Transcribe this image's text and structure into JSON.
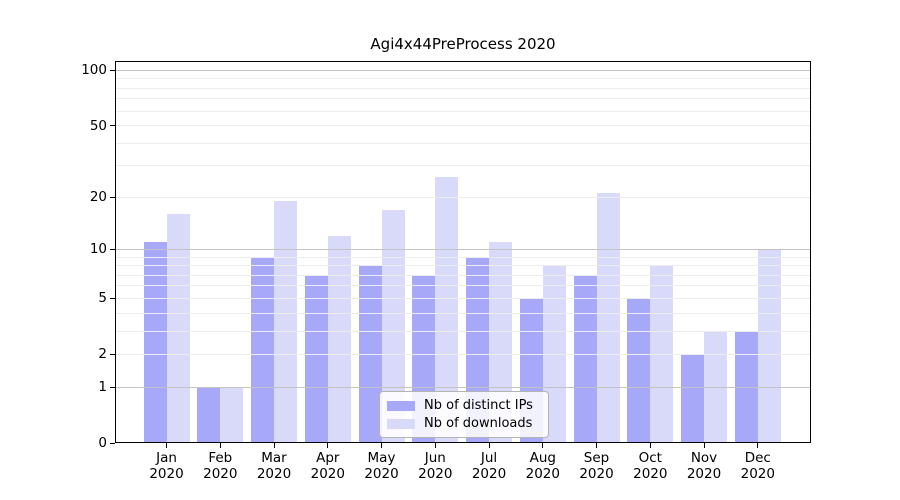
{
  "chart_data": {
    "type": "bar",
    "title": "Agi4x44PreProcess 2020",
    "months": [
      "Jan",
      "Feb",
      "Mar",
      "Apr",
      "May",
      "Jun",
      "Jul",
      "Aug",
      "Sep",
      "Oct",
      "Nov",
      "Dec"
    ],
    "year": "2020",
    "categories": [
      "Jan 2020",
      "Feb 2020",
      "Mar 2020",
      "Apr 2020",
      "May 2020",
      "Jun 2020",
      "Jul 2020",
      "Aug 2020",
      "Sep 2020",
      "Oct 2020",
      "Nov 2020",
      "Dec 2020"
    ],
    "series": [
      {
        "name": "Nb of distinct IPs",
        "color": "#a8a8f8",
        "values": [
          11,
          1,
          9,
          7,
          8,
          7,
          9,
          5,
          7,
          5,
          2,
          3
        ]
      },
      {
        "name": "Nb of downloads",
        "color": "#d9d9fa",
        "values": [
          16,
          1,
          19,
          12,
          17,
          26,
          11,
          8,
          21,
          8,
          3,
          10
        ]
      }
    ],
    "yscale": "log1p",
    "ylim": [
      0,
      112
    ],
    "yticks": [
      0,
      1,
      2,
      5,
      10,
      20,
      50,
      100
    ],
    "major_gridlines": [
      1,
      10,
      100
    ],
    "minor_gridlines": [
      2,
      3,
      4,
      5,
      6,
      7,
      8,
      9,
      20,
      30,
      40,
      50,
      60,
      70,
      80,
      90
    ],
    "grid": true,
    "legend_position": "lower center",
    "xlabel": "",
    "ylabel": ""
  },
  "colors": {
    "background": "#ffffff",
    "frame": "#000000",
    "major_grid": "#c3c3c3",
    "minor_grid": "#ececec",
    "text": "#000000",
    "legend_border": "#b3b3b3"
  }
}
